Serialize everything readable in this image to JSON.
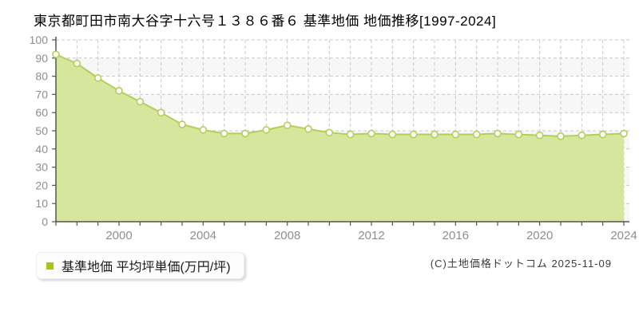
{
  "title": "東京都町田市南大谷字十六号１３８６番６ 基準地価 地価推移[1997-2024]",
  "legend": {
    "label": "基準地価 平均坪単価(万円/坪)",
    "marker_color": "#a3c714"
  },
  "footer": {
    "copyright": "(C)土地価格ドットコム 2025-11-09"
  },
  "chart_data": {
    "type": "area",
    "title": "東京都町田市南大谷字十六号１３８６番６ 基準地価 地価推移[1997-2024]",
    "x": [
      1997,
      1998,
      1999,
      2000,
      2001,
      2002,
      2003,
      2004,
      2005,
      2006,
      2007,
      2008,
      2009,
      2010,
      2011,
      2012,
      2013,
      2014,
      2015,
      2016,
      2017,
      2018,
      2019,
      2020,
      2021,
      2022,
      2023,
      2024
    ],
    "series": [
      {
        "name": "基準地価 平均坪単価(万円/坪)",
        "values": [
          92,
          87,
          79,
          72,
          66,
          60,
          53.5,
          50.5,
          48.5,
          48.5,
          50.5,
          53,
          51,
          49,
          48,
          48.5,
          48,
          48,
          48,
          48,
          48,
          48.5,
          48,
          47.5,
          47,
          47.5,
          48,
          48.5
        ]
      }
    ],
    "xlabel": "",
    "ylabel": "",
    "ylim": [
      0,
      100
    ],
    "yticks": [
      0,
      10,
      20,
      30,
      40,
      50,
      60,
      70,
      80,
      90,
      100
    ],
    "xtick_labels": [
      "2000",
      "2004",
      "2008",
      "2012",
      "2016",
      "2020",
      "2024"
    ],
    "grid": true,
    "legend_position": "bottom-left",
    "markers": true,
    "colors": {
      "area_fill": "#d6e69c",
      "line": "#b4cf58",
      "marker_fill": "#ffffff",
      "marker_stroke": "#b4cf58",
      "grid": "#c9c9c9",
      "axis": "#555555",
      "tick_label": "#8e8e8e",
      "band": "#f7f7f7",
      "title_text": "#000000"
    }
  }
}
